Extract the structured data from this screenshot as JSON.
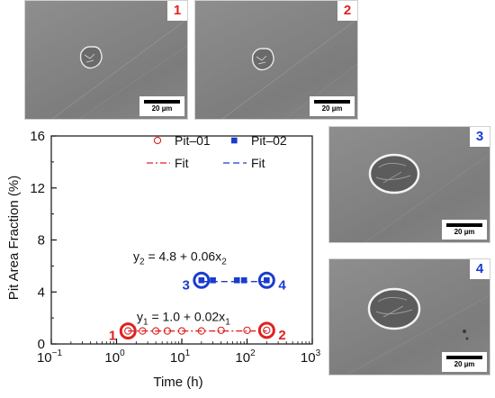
{
  "sem_images": [
    {
      "label": "1",
      "label_color": "#e02020",
      "scale": "20 µm"
    },
    {
      "label": "2",
      "label_color": "#e02020",
      "scale": "20 µm"
    },
    {
      "label": "3",
      "label_color": "#1a3ccf",
      "scale": "20 µm"
    },
    {
      "label": "4",
      "label_color": "#1a3ccf",
      "scale": "20 µm"
    }
  ],
  "chart_data": {
    "type": "scatter",
    "xlabel": "Time (h)",
    "ylabel": "Pit Area Fraction (%)",
    "x_scale": "log",
    "xlim": [
      0.1,
      1000
    ],
    "ylim": [
      0,
      16
    ],
    "x_ticks": [
      {
        "base": "10",
        "exp": "−1"
      },
      {
        "base": "10",
        "exp": "0"
      },
      {
        "base": "10",
        "exp": "1"
      },
      {
        "base": "10",
        "exp": "2"
      },
      {
        "base": "10",
        "exp": "3"
      }
    ],
    "y_ticks": [
      "0",
      "4",
      "8",
      "12",
      "16"
    ],
    "y_tick_values": [
      0,
      4,
      8,
      12,
      16
    ],
    "legend": {
      "placement": "top-right",
      "items": [
        {
          "label": "Pit–01",
          "marker": "open-circle",
          "color": "#e02020"
        },
        {
          "label": "Pit–02",
          "marker": "filled-square",
          "color": "#1a3ccf"
        },
        {
          "label": "Fit",
          "line": "dash-dot",
          "color": "#e02020"
        },
        {
          "label": "Fit",
          "line": "dashed",
          "color": "#1a3ccf"
        }
      ]
    },
    "series": [
      {
        "name": "Pit–01",
        "color": "#e02020",
        "x": [
          1.5,
          2.5,
          4,
          6,
          10,
          20,
          40,
          100,
          200
        ],
        "y": [
          1.0,
          1.0,
          1.0,
          1.0,
          1.0,
          1.0,
          1.05,
          1.05,
          1.05
        ]
      },
      {
        "name": "Pit–02",
        "color": "#1a3ccf",
        "x": [
          20,
          30,
          70,
          90,
          200
        ],
        "y": [
          4.9,
          4.9,
          4.9,
          4.9,
          4.9
        ]
      }
    ],
    "fits": [
      {
        "color": "#e02020",
        "x_range": [
          1.5,
          200
        ],
        "intercept": 1.0,
        "slope": 0.02,
        "eq": {
          "a": "y",
          "a_sub": "1",
          "mid": " = 1.0 + 0.02x",
          "b_sub": "1"
        }
      },
      {
        "color": "#1a3ccf",
        "x_range": [
          20,
          200
        ],
        "intercept": 4.8,
        "slope": 0.06,
        "eq": {
          "a": "y",
          "a_sub": "2",
          "mid": " = 4.8 + 0.06x",
          "b_sub": "2"
        }
      }
    ],
    "highlights": [
      {
        "label": "1",
        "color": "#e02020",
        "x": 1.5,
        "y": 1.0
      },
      {
        "label": "2",
        "color": "#e02020",
        "x": 200,
        "y": 1.05
      },
      {
        "label": "3",
        "color": "#1a3ccf",
        "x": 20,
        "y": 4.9
      },
      {
        "label": "4",
        "color": "#1a3ccf",
        "x": 200,
        "y": 4.9
      }
    ]
  }
}
